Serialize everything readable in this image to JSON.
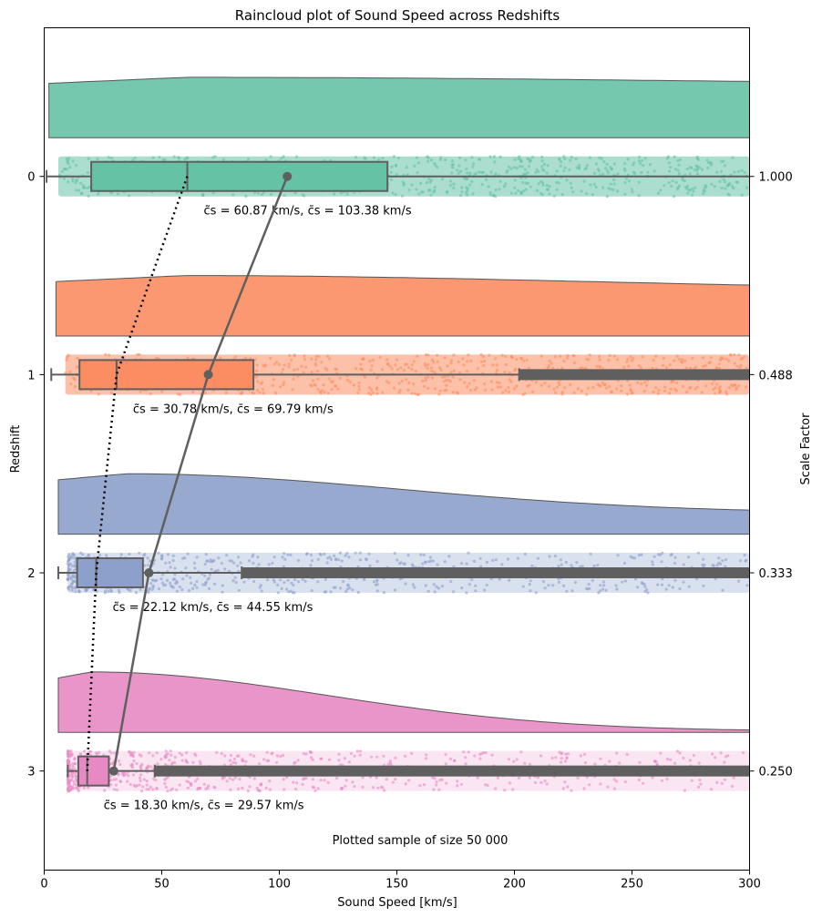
{
  "chart_data": {
    "type": "raincloud",
    "title": "Raincloud plot of Sound Speed across Redshifts",
    "xlabel": "Sound Speed [km/s]",
    "ylabel": "Redshift",
    "ylabel_right": "Scale Factor",
    "xlim": [
      0,
      300
    ],
    "xticks": [
      "0",
      "50",
      "100",
      "150",
      "200",
      "250",
      "300"
    ],
    "annotation": "Plotted sample of size 50 000",
    "groups": [
      {
        "redshift": "0",
        "scale_factor": "1.000",
        "color": "#66c2a5",
        "median": 60.87,
        "mean": 103.38,
        "whisker_low": 1,
        "q1": 20,
        "q3": 146,
        "whisker_high": 300,
        "outlier_from": null,
        "kde_peak": 60,
        "kde_end_rel": 0.85,
        "strip_start": 6,
        "strip_density": 1.0,
        "stats_label": "c̃s = 60.87 km/s, c̄s = 103.38 km/s"
      },
      {
        "redshift": "1",
        "scale_factor": "0.488",
        "color": "#fc8d62",
        "median": 30.78,
        "mean": 69.79,
        "whisker_low": 3,
        "q1": 15,
        "q3": 89,
        "whisker_high": 202,
        "outlier_from": 202,
        "kde_peak": 60,
        "kde_end_rel": 0.75,
        "strip_start": 9,
        "strip_density": 1.0,
        "stats_label": "c̃s = 30.78 km/s, c̄s = 69.79 km/s"
      },
      {
        "redshift": "2",
        "scale_factor": "0.333",
        "color": "#8da0cb",
        "median": 22.12,
        "mean": 44.55,
        "whisker_low": 6,
        "q1": 14,
        "q3": 42,
        "whisker_high": 84,
        "outlier_from": 84,
        "kde_peak": 35,
        "kde_end_rel": 0.35,
        "strip_start": 10,
        "strip_density": 0.6,
        "stats_label": "c̃s = 22.12 km/s, c̄s = 44.55 km/s"
      },
      {
        "redshift": "3",
        "scale_factor": "0.250",
        "color": "#e78ac3",
        "median": 18.3,
        "mean": 29.57,
        "whisker_low": 10,
        "q1": 14.5,
        "q3": 27.5,
        "whisker_high": 47,
        "outlier_from": 47,
        "kde_peak": 20,
        "kde_end_rel": 0.02,
        "strip_start": 10,
        "strip_density": 0.4,
        "stats_label": "c̃s = 18.30 km/s, c̄s = 29.57 km/s"
      }
    ],
    "legend": "none",
    "grid": false
  }
}
